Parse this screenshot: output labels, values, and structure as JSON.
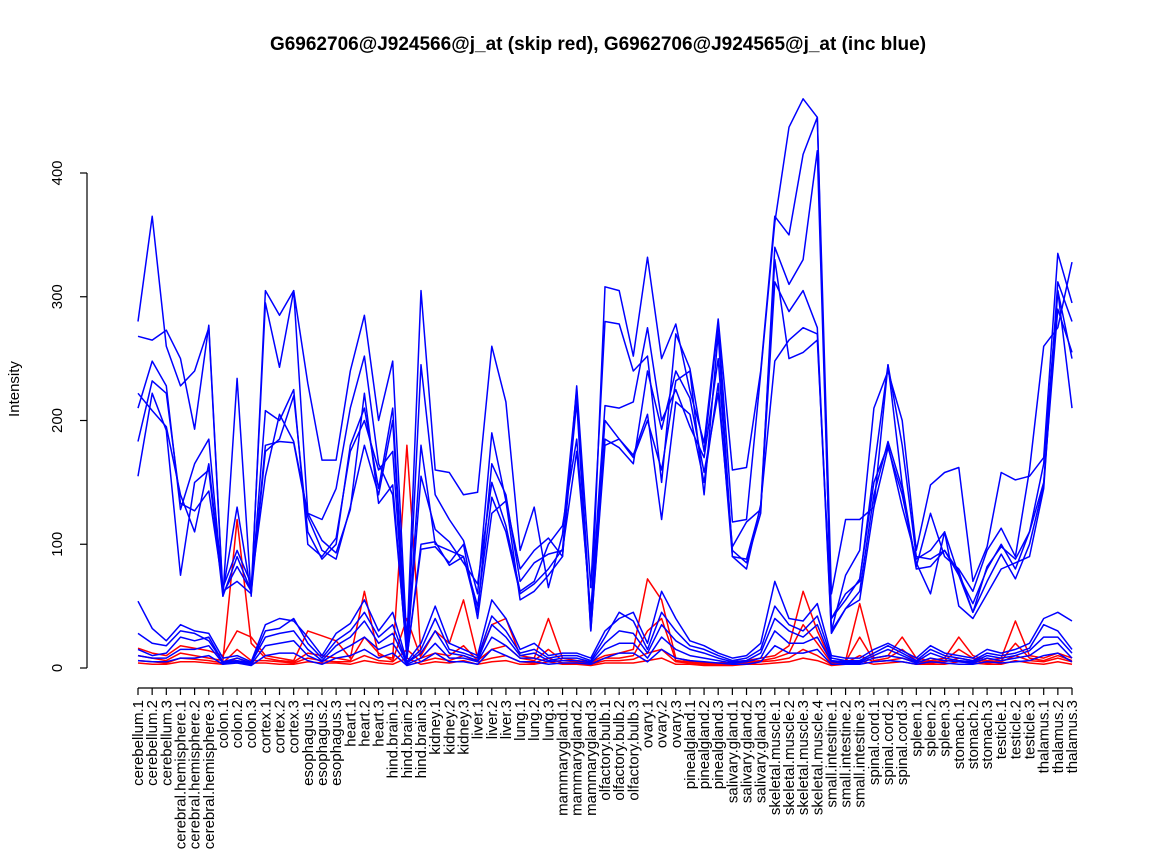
{
  "chart_data": {
    "type": "line",
    "title": "G6962706@J924566@j_at (skip red), G6962706@J924565@j_at (inc blue)",
    "xlabel": "",
    "ylabel": "Intensity",
    "ylim": [
      0,
      400
    ],
    "yticks": [
      "0",
      "100",
      "200",
      "300",
      "400"
    ],
    "grid": false,
    "categories": [
      "cerebellum.1",
      "cerebellum.2",
      "cerebellum.3",
      "cerebral.hemisphere.1",
      "cerebral.hemisphere.2",
      "cerebral.hemisphere.3",
      "colon.1",
      "colon.2",
      "colon.3",
      "cortex.1",
      "cortex.2",
      "cortex.3",
      "esophagus.1",
      "esophagus.2",
      "esophagus.3",
      "heart.1",
      "heart.2",
      "heart.3",
      "hind.brain.1",
      "hind.brain.2",
      "hind.brain.3",
      "kidney.1",
      "kidney.2",
      "kidney.3",
      "liver.1",
      "liver.2",
      "liver.3",
      "lung.1",
      "lung.2",
      "lung.3",
      "mammarygland.1",
      "mammarygland.2",
      "mammarygland.3",
      "olfactory.bulb.1",
      "olfactory.bulb.2",
      "olfactory.bulb.3",
      "ovary.1",
      "ovary.2",
      "ovary.3",
      "pinealgland.1",
      "pinealgland.2",
      "pinealgland.3",
      "salivary.gland.1",
      "salivary.gland.2",
      "salivary.gland.3",
      "skeletal.muscle.1",
      "skeletal.muscle.2",
      "skeletal.muscle.3",
      "skeletal.muscle.4",
      "small.intestine.1",
      "small.intestine.2",
      "small.intestine.3",
      "spinal.cord.1",
      "spinal.cord.2",
      "spinal.cord.3",
      "spleen.1",
      "spleen.2",
      "spleen.3",
      "stomach.1",
      "stomach.2",
      "stomach.3",
      "testicle.1",
      "testicle.2",
      "testicle.3",
      "thalamus.1",
      "thalamus.2",
      "thalamus.3"
    ],
    "series": [
      {
        "color": "#ff0000",
        "values": [
          16,
          12,
          10,
          18,
          16,
          14,
          10,
          30,
          25,
          10,
          8,
          6,
          30,
          26,
          22,
          8,
          62,
          10,
          8,
          180,
          10,
          30,
          20,
          55,
          8,
          35,
          40,
          10,
          8,
          40,
          8,
          6,
          5,
          10,
          12,
          15,
          72,
          55,
          8,
          6,
          4,
          4,
          5,
          6,
          8,
          10,
          18,
          62,
          30,
          5,
          6,
          52,
          8,
          10,
          25,
          8,
          6,
          8,
          25,
          10,
          6,
          8,
          38,
          10,
          8,
          12,
          8
        ]
      },
      {
        "color": "#ff0000",
        "values": [
          10,
          8,
          6,
          12,
          10,
          8,
          6,
          120,
          20,
          8,
          6,
          5,
          12,
          10,
          8,
          6,
          25,
          12,
          6,
          40,
          8,
          12,
          10,
          18,
          6,
          15,
          18,
          8,
          6,
          15,
          6,
          5,
          4,
          8,
          8,
          10,
          30,
          40,
          6,
          5,
          4,
          3,
          4,
          5,
          6,
          8,
          12,
          35,
          20,
          4,
          5,
          25,
          6,
          8,
          15,
          6,
          5,
          6,
          15,
          8,
          5,
          6,
          20,
          8,
          6,
          10,
          6
        ]
      },
      {
        "color": "#ff0000",
        "values": [
          6,
          5,
          4,
          8,
          7,
          6,
          4,
          15,
          6,
          6,
          5,
          4,
          8,
          6,
          5,
          5,
          10,
          6,
          5,
          15,
          5,
          8,
          6,
          10,
          5,
          8,
          10,
          5,
          4,
          8,
          4,
          4,
          3,
          6,
          6,
          7,
          12,
          15,
          5,
          4,
          3,
          3,
          3,
          4,
          5,
          6,
          8,
          15,
          10,
          3,
          4,
          10,
          5,
          6,
          8,
          5,
          4,
          5,
          8,
          6,
          4,
          5,
          10,
          6,
          5,
          8,
          5
        ]
      },
      {
        "color": "#ff0000",
        "values": [
          4,
          3,
          3,
          5,
          5,
          4,
          3,
          8,
          4,
          4,
          3,
          3,
          5,
          4,
          4,
          3,
          6,
          4,
          3,
          8,
          3,
          5,
          4,
          6,
          3,
          5,
          6,
          3,
          3,
          5,
          3,
          3,
          2,
          4,
          4,
          4,
          6,
          8,
          3,
          3,
          2,
          2,
          2,
          3,
          3,
          4,
          5,
          8,
          6,
          2,
          3,
          6,
          3,
          4,
          5,
          3,
          3,
          3,
          5,
          4,
          3,
          3,
          6,
          4,
          3,
          5,
          3
        ]
      },
      {
        "color": "#0000ff",
        "values": [
          280,
          365,
          260,
          228,
          240,
          275,
          58,
          234,
          58,
          305,
          285,
          305,
          230,
          168,
          168,
          240,
          285,
          200,
          248,
          20,
          305,
          160,
          158,
          140,
          142,
          260,
          215,
          95,
          130,
          65,
          108,
          225,
          35,
          308,
          305,
          252,
          332,
          250,
          278,
          224,
          182,
          282,
          160,
          162,
          240,
          365,
          350,
          415,
          445,
          30,
          75,
          95,
          210,
          240,
          200,
          95,
          148,
          158,
          162,
          70,
          98,
          158,
          152,
          155,
          170,
          335,
          295
        ]
      },
      {
        "color": "#0000ff",
        "values": [
          268,
          265,
          273,
          250,
          193,
          277,
          60,
          82,
          62,
          295,
          243,
          305,
          125,
          120,
          145,
          210,
          252,
          165,
          140,
          12,
          245,
          140,
          120,
          103,
          60,
          190,
          135,
          80,
          95,
          105,
          90,
          228,
          65,
          280,
          278,
          240,
          252,
          150,
          270,
          242,
          175,
          278,
          118,
          120,
          238,
          360,
          437,
          460,
          445,
          60,
          120,
          120,
          130,
          245,
          148,
          82,
          125,
          90,
          80,
          62,
          95,
          113,
          90,
          160,
          260,
          275,
          328
        ]
      },
      {
        "color": "#0000ff",
        "values": [
          210,
          248,
          228,
          128,
          165,
          185,
          62,
          130,
          60,
          208,
          200,
          225,
          100,
          90,
          105,
          175,
          200,
          160,
          175,
          10,
          180,
          100,
          95,
          90,
          45,
          165,
          140,
          70,
          85,
          92,
          95,
          175,
          45,
          212,
          210,
          215,
          275,
          200,
          225,
          195,
          170,
          250,
          95,
          85,
          125,
          340,
          310,
          330,
          418,
          40,
          60,
          70,
          160,
          245,
          180,
          90,
          88,
          95,
          75,
          52,
          80,
          100,
          80,
          110,
          165,
          305,
          250
        ]
      },
      {
        "color": "#0000ff",
        "values": [
          183,
          232,
          222,
          133,
          127,
          143,
          65,
          95,
          68,
          155,
          205,
          183,
          125,
          103,
          93,
          128,
          222,
          133,
          148,
          8,
          100,
          102,
          83,
          90,
          50,
          138,
          110,
          60,
          68,
          80,
          96,
          215,
          30,
          185,
          178,
          165,
          240,
          193,
          240,
          218,
          158,
          222,
          98,
          118,
          128,
          312,
          288,
          305,
          275,
          30,
          48,
          62,
          140,
          183,
          145,
          80,
          82,
          95,
          78,
          45,
          70,
          92,
          72,
          100,
          148,
          312,
          280
        ]
      },
      {
        "color": "#0000ff",
        "values": [
          155,
          222,
          192,
          75,
          150,
          160,
          58,
          90,
          62,
          180,
          183,
          182,
          122,
          95,
          88,
          130,
          180,
          140,
          200,
          8,
          96,
          98,
          85,
          100,
          40,
          125,
          135,
          55,
          62,
          75,
          90,
          220,
          30,
          180,
          185,
          172,
          205,
          120,
          215,
          205,
          150,
          230,
          90,
          80,
          132,
          248,
          265,
          275,
          270,
          28,
          48,
          55,
          130,
          178,
          140,
          85,
          60,
          110,
          50,
          40,
          60,
          80,
          85,
          90,
          145,
          305,
          210
        ]
      },
      {
        "color": "#0000ff",
        "values": [
          222,
          208,
          195,
          140,
          110,
          165,
          62,
          70,
          60,
          175,
          185,
          220,
          110,
          88,
          100,
          180,
          210,
          145,
          210,
          10,
          155,
          112,
          102,
          85,
          68,
          150,
          115,
          62,
          70,
          100,
          115,
          185,
          40,
          200,
          185,
          170,
          200,
          160,
          232,
          240,
          140,
          270,
          90,
          88,
          130,
          330,
          250,
          255,
          265,
          40,
          55,
          72,
          150,
          180,
          130,
          88,
          95,
          110,
          75,
          45,
          82,
          98,
          88,
          110,
          150,
          290,
          255
        ]
      },
      {
        "color": "#0000ff",
        "values": [
          54,
          32,
          22,
          35,
          30,
          28,
          8,
          10,
          5,
          35,
          40,
          38,
          25,
          10,
          28,
          36,
          55,
          30,
          45,
          5,
          20,
          50,
          20,
          15,
          10,
          55,
          40,
          15,
          20,
          10,
          12,
          12,
          8,
          30,
          40,
          45,
          20,
          62,
          40,
          22,
          18,
          12,
          8,
          10,
          20,
          70,
          40,
          38,
          52,
          10,
          8,
          8,
          15,
          20,
          14,
          8,
          18,
          12,
          10,
          8,
          15,
          12,
          15,
          20,
          40,
          45,
          38
        ]
      },
      {
        "color": "#0000ff",
        "values": [
          28,
          20,
          18,
          30,
          28,
          22,
          5,
          8,
          4,
          30,
          32,
          40,
          20,
          8,
          22,
          30,
          45,
          25,
          35,
          4,
          15,
          40,
          15,
          12,
          8,
          42,
          30,
          12,
          15,
          8,
          10,
          10,
          6,
          25,
          45,
          38,
          15,
          45,
          30,
          18,
          15,
          10,
          6,
          8,
          15,
          50,
          35,
          30,
          42,
          8,
          6,
          6,
          12,
          18,
          12,
          6,
          15,
          10,
          8,
          6,
          12,
          10,
          12,
          16,
          35,
          30,
          15
        ]
      },
      {
        "color": "#0000ff",
        "values": [
          15,
          10,
          12,
          25,
          22,
          25,
          5,
          6,
          4,
          25,
          28,
          30,
          15,
          6,
          18,
          25,
          38,
          20,
          28,
          4,
          12,
          30,
          12,
          10,
          6,
          35,
          25,
          10,
          12,
          6,
          8,
          8,
          5,
          20,
          30,
          28,
          12,
          35,
          22,
          15,
          12,
          8,
          5,
          6,
          12,
          40,
          30,
          25,
          35,
          6,
          5,
          5,
          10,
          15,
          10,
          5,
          12,
          8,
          6,
          5,
          10,
          8,
          10,
          14,
          25,
          25,
          12
        ]
      },
      {
        "color": "#0000ff",
        "values": [
          10,
          8,
          8,
          15,
          15,
          18,
          4,
          5,
          3,
          18,
          20,
          22,
          10,
          5,
          12,
          18,
          25,
          15,
          20,
          3,
          8,
          20,
          8,
          8,
          5,
          25,
          18,
          8,
          8,
          5,
          6,
          6,
          4,
          15,
          20,
          20,
          8,
          25,
          15,
          10,
          8,
          6,
          4,
          5,
          8,
          30,
          20,
          20,
          25,
          5,
          4,
          4,
          8,
          10,
          8,
          4,
          8,
          6,
          5,
          4,
          8,
          6,
          8,
          10,
          18,
          20,
          8
        ]
      },
      {
        "color": "#0000ff",
        "values": [
          6,
          5,
          5,
          8,
          8,
          10,
          3,
          4,
          2,
          10,
          12,
          12,
          6,
          3,
          8,
          10,
          15,
          8,
          12,
          2,
          5,
          12,
          5,
          5,
          3,
          15,
          10,
          5,
          5,
          3,
          4,
          4,
          3,
          8,
          12,
          12,
          5,
          15,
          8,
          6,
          5,
          4,
          3,
          3,
          5,
          18,
          12,
          12,
          15,
          3,
          3,
          3,
          5,
          6,
          5,
          3,
          5,
          4,
          3,
          3,
          5,
          4,
          5,
          6,
          10,
          12,
          5
        ]
      }
    ]
  }
}
